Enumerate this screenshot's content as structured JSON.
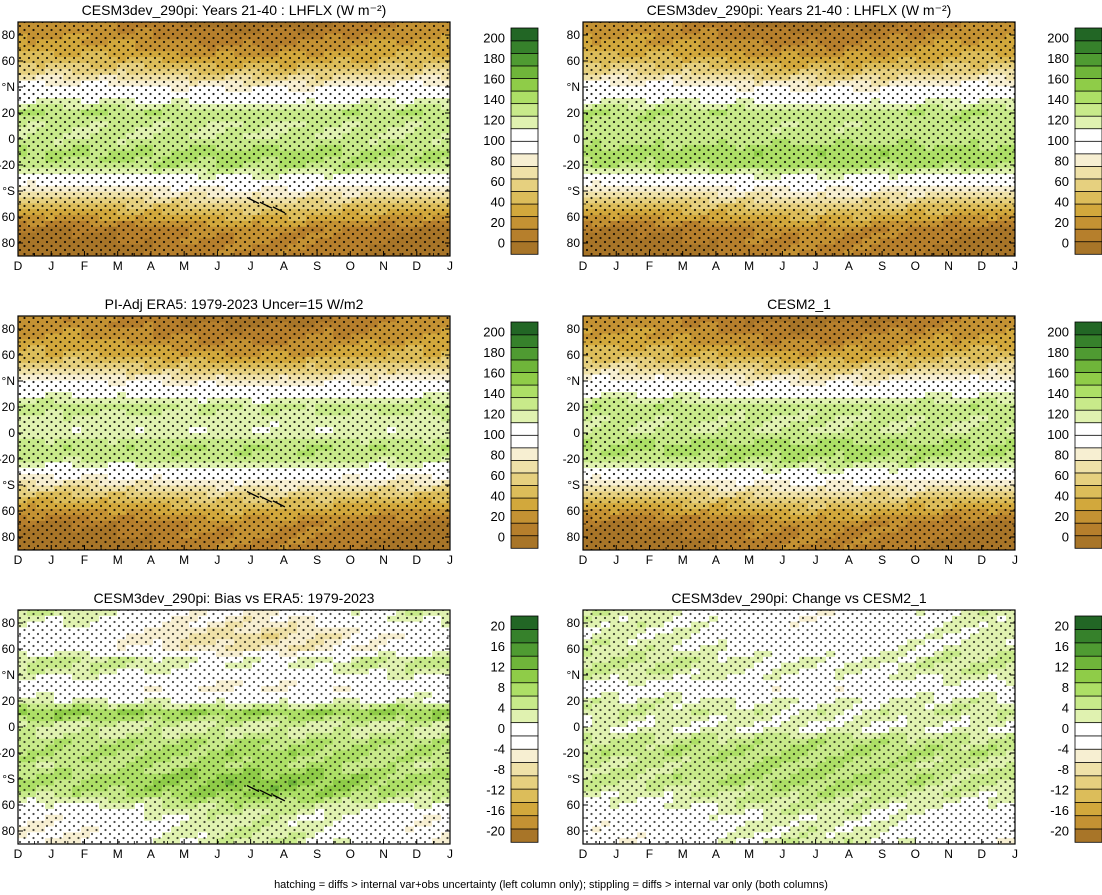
{
  "footer_note": "hatching = diffs > internal var+obs uncertainty (left column only); stippling = diffs > internal var only (both columns)",
  "month_labels": [
    "D",
    "J",
    "F",
    "M",
    "A",
    "M",
    "J",
    "J",
    "A",
    "S",
    "O",
    "N",
    "D",
    "J"
  ],
  "lat_tick_labels": [
    "80",
    "60",
    "°N",
    "20",
    "0",
    "-20",
    "°S",
    "60",
    "80"
  ],
  "colors": {
    "abs": [
      "#a87528",
      "#b67f2c",
      "#c49233",
      "#d2a83c",
      "#dcbd5a",
      "#e6d07f",
      "#efe1a8",
      "#f7efd2",
      "#ffffff",
      "#ffffff",
      "#e0f2b0",
      "#c8ea8a",
      "#addf66",
      "#8fcc48",
      "#6fb53a",
      "#4f9b32",
      "#36812b",
      "#226625"
    ],
    "diff": [
      "#a87528",
      "#c49233",
      "#d2a83c",
      "#dcbd5a",
      "#e6d07f",
      "#efe1a8",
      "#f7efd2",
      "#ffffff",
      "#ffffff",
      "#e0f2b0",
      "#c8ea8a",
      "#addf66",
      "#8fcc48",
      "#6fb53a",
      "#4f9b32",
      "#36812b",
      "#226625"
    ]
  },
  "chart_data": [
    {
      "type": "heatmap",
      "title": "CESM3dev_290pi: Years 21-40 : LHFLX (W m⁻²)",
      "x_categories": [
        "D",
        "J",
        "F",
        "M",
        "A",
        "M",
        "J",
        "J",
        "A",
        "S",
        "O",
        "N",
        "D",
        "J"
      ],
      "y_range": [
        -90,
        90
      ],
      "colorbar_ticks": [
        "0",
        "20",
        "40",
        "60",
        "80",
        "100",
        "120",
        "140",
        "160",
        "180",
        "200"
      ],
      "colorbar_range": [
        -10,
        210
      ],
      "field": "absolute",
      "lat_profile": {
        "lat": [
          -90,
          -70,
          -50,
          -40,
          -30,
          -20,
          -10,
          0,
          10,
          20,
          30,
          40,
          50,
          60,
          70,
          90
        ],
        "value": [
          0,
          10,
          55,
          80,
          105,
          135,
          140,
          125,
          125,
          135,
          110,
          90,
          60,
          40,
          25,
          5
        ]
      },
      "seasonal_amplitude": 12,
      "stippled": true,
      "hatched": true
    },
    {
      "type": "heatmap",
      "title": "CESM3dev_290pi: Years 21-40 : LHFLX (W m⁻²)",
      "x_categories": [
        "D",
        "J",
        "F",
        "M",
        "A",
        "M",
        "J",
        "J",
        "A",
        "S",
        "O",
        "N",
        "D",
        "J"
      ],
      "y_range": [
        -90,
        90
      ],
      "colorbar_ticks": [
        "0",
        "20",
        "40",
        "60",
        "80",
        "100",
        "120",
        "140",
        "160",
        "180",
        "200"
      ],
      "colorbar_range": [
        -10,
        210
      ],
      "field": "absolute",
      "lat_profile": {
        "lat": [
          -90,
          -70,
          -50,
          -40,
          -30,
          -20,
          -10,
          0,
          10,
          20,
          30,
          40,
          50,
          60,
          70,
          90
        ],
        "value": [
          0,
          10,
          55,
          80,
          105,
          140,
          145,
          130,
          128,
          135,
          110,
          90,
          60,
          40,
          25,
          5
        ]
      },
      "seasonal_amplitude": 12,
      "stippled": true,
      "hatched": false
    },
    {
      "type": "heatmap",
      "title": "PI-Adj ERA5: 1979-2023 Uncer=15 W/m2",
      "x_categories": [
        "D",
        "J",
        "F",
        "M",
        "A",
        "M",
        "J",
        "J",
        "A",
        "S",
        "O",
        "N",
        "D",
        "J"
      ],
      "y_range": [
        -90,
        90
      ],
      "colorbar_ticks": [
        "0",
        "20",
        "40",
        "60",
        "80",
        "100",
        "120",
        "140",
        "160",
        "180",
        "200"
      ],
      "colorbar_range": [
        -10,
        210
      ],
      "field": "absolute",
      "lat_profile": {
        "lat": [
          -90,
          -70,
          -50,
          -40,
          -30,
          -20,
          -10,
          0,
          10,
          20,
          30,
          40,
          50,
          60,
          70,
          90
        ],
        "value": [
          0,
          10,
          50,
          75,
          100,
          130,
          135,
          115,
          118,
          130,
          105,
          85,
          55,
          35,
          22,
          5
        ]
      },
      "seasonal_amplitude": 12,
      "stippled": true,
      "hatched": true
    },
    {
      "type": "heatmap",
      "title": "CESM2_1",
      "x_categories": [
        "D",
        "J",
        "F",
        "M",
        "A",
        "M",
        "J",
        "J",
        "A",
        "S",
        "O",
        "N",
        "D",
        "J"
      ],
      "y_range": [
        -90,
        90
      ],
      "colorbar_ticks": [
        "0",
        "20",
        "40",
        "60",
        "80",
        "100",
        "120",
        "140",
        "160",
        "180",
        "200"
      ],
      "colorbar_range": [
        -10,
        210
      ],
      "field": "absolute",
      "lat_profile": {
        "lat": [
          -90,
          -70,
          -50,
          -40,
          -30,
          -20,
          -10,
          0,
          10,
          20,
          30,
          40,
          50,
          60,
          70,
          90
        ],
        "value": [
          0,
          10,
          55,
          80,
          105,
          135,
          142,
          125,
          125,
          132,
          108,
          88,
          58,
          38,
          24,
          5
        ]
      },
      "seasonal_amplitude": 12,
      "stippled": true,
      "hatched": false
    },
    {
      "type": "heatmap",
      "title": "CESM3dev_290pi: Bias vs ERA5: 1979-2023",
      "x_categories": [
        "D",
        "J",
        "F",
        "M",
        "A",
        "M",
        "J",
        "J",
        "A",
        "S",
        "O",
        "N",
        "D",
        "J"
      ],
      "y_range": [
        -90,
        90
      ],
      "colorbar_ticks": [
        "-20",
        "-16",
        "-12",
        "-8",
        "-4",
        "0",
        "4",
        "8",
        "12",
        "16",
        "20"
      ],
      "colorbar_range": [
        -22,
        22
      ],
      "field": "difference",
      "lat_profile": {
        "lat": [
          -90,
          -70,
          -60,
          -50,
          -40,
          -30,
          -20,
          -10,
          0,
          10,
          20,
          30,
          40,
          50,
          60,
          70,
          80,
          90
        ],
        "value": [
          0,
          0,
          3,
          8,
          9,
          6,
          7,
          6,
          2,
          10,
          1,
          -3,
          0,
          4,
          -4,
          -5,
          -2,
          0
        ]
      },
      "seasonal_amplitude": 4,
      "stippled": true,
      "hatched": true
    },
    {
      "type": "heatmap",
      "title": "CESM3dev_290pi: Change vs CESM2_1",
      "x_categories": [
        "D",
        "J",
        "F",
        "M",
        "A",
        "M",
        "J",
        "J",
        "A",
        "S",
        "O",
        "N",
        "D",
        "J"
      ],
      "y_range": [
        -90,
        90
      ],
      "colorbar_ticks": [
        "-20",
        "-16",
        "-12",
        "-8",
        "-4",
        "0",
        "4",
        "8",
        "12",
        "16",
        "20"
      ],
      "colorbar_range": [
        -22,
        22
      ],
      "field": "difference",
      "lat_profile": {
        "lat": [
          -90,
          -70,
          -60,
          -50,
          -40,
          -30,
          -20,
          -10,
          0,
          10,
          20,
          30,
          40,
          50,
          60,
          70,
          80,
          90
        ],
        "value": [
          0,
          0,
          2,
          4,
          6,
          5,
          6,
          5,
          1,
          3,
          2,
          -2,
          2,
          3,
          1,
          0,
          0,
          0
        ]
      },
      "seasonal_amplitude": 3,
      "stippled": true,
      "hatched": false
    }
  ]
}
